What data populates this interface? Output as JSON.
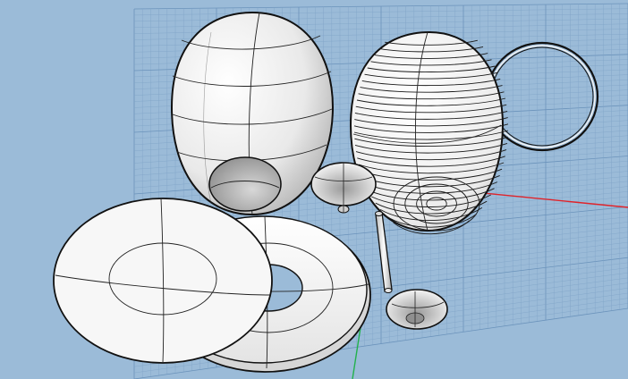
{
  "viewport": {
    "view": "perspective",
    "background_color": "#9bbbd8",
    "grid_color": "#7fa3c6",
    "grid_major_color": "#6b93bb",
    "x_axis_color": "#e0232a",
    "y_axis_color": "#22b14c",
    "object_fill": "#f4f4f4",
    "object_stroke": "#111111"
  },
  "objects": [
    {
      "name": "egg-shell-shaded",
      "kind": "surface"
    },
    {
      "name": "egg-shell-isocurves",
      "kind": "surface"
    },
    {
      "name": "ring-wire",
      "kind": "curve"
    },
    {
      "name": "funnel-upper",
      "kind": "surface"
    },
    {
      "name": "tube-stem",
      "kind": "surface"
    },
    {
      "name": "funnel-lower",
      "kind": "surface"
    },
    {
      "name": "flat-disc",
      "kind": "surface"
    },
    {
      "name": "torus-disc",
      "kind": "surface"
    }
  ]
}
